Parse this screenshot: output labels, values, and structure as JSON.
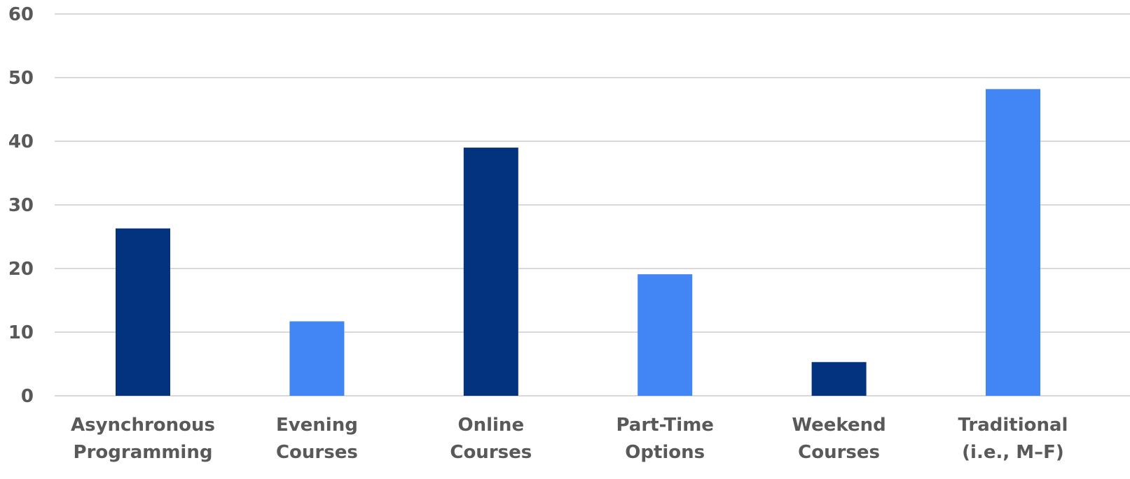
{
  "chart_data": {
    "type": "bar",
    "categories": [
      [
        "Asynchronous",
        "Programming"
      ],
      [
        "Evening",
        "Courses"
      ],
      [
        "Online",
        "Courses"
      ],
      [
        "Part-Time",
        "Options"
      ],
      [
        "Weekend",
        "Courses"
      ],
      [
        "Traditional",
        "(i.e., M–F)"
      ]
    ],
    "values": [
      26.3,
      11.7,
      39,
      19.1,
      5.3,
      48.2
    ],
    "colors": [
      "#03337e",
      "#4285f4",
      "#03337e",
      "#4285f4",
      "#03337e",
      "#4285f4"
    ],
    "ylim": [
      0,
      60
    ],
    "yticks": [
      0,
      10,
      20,
      30,
      40,
      50,
      60
    ],
    "grid": true,
    "title": "",
    "xlabel": "",
    "ylabel": ""
  }
}
